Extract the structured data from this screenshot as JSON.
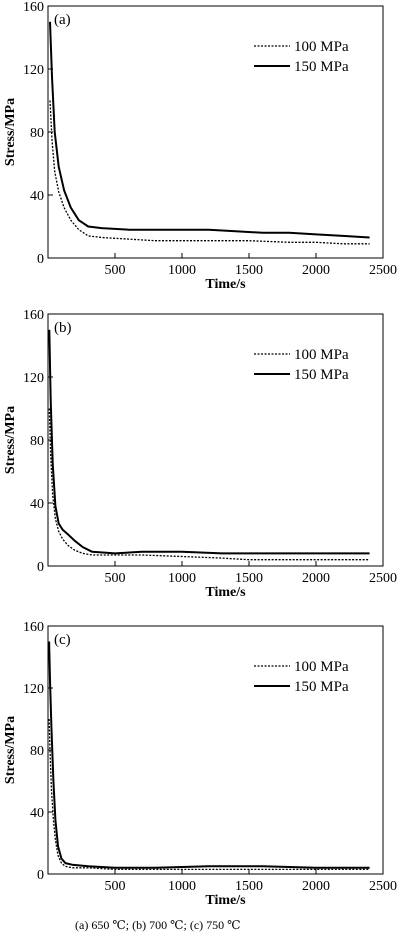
{
  "chart_data": [
    {
      "type": "line",
      "panel_label": "(a)",
      "xlabel": "Time/s",
      "ylabel": "Stress/MPa",
      "xlim": [
        0,
        2500
      ],
      "ylim": [
        0,
        160
      ],
      "xticks": [
        500,
        1000,
        1500,
        2000,
        2500
      ],
      "yticks": [
        0,
        40,
        80,
        120,
        160
      ],
      "legend_position": "top-right",
      "grid": false,
      "series": [
        {
          "name": "100 MPa",
          "style": "dotted",
          "x": [
            15,
            30,
            50,
            80,
            120,
            170,
            230,
            300,
            400,
            600,
            800,
            1000,
            1200,
            1500,
            1800,
            2000,
            2200,
            2400
          ],
          "y": [
            100,
            75,
            55,
            42,
            32,
            24,
            18,
            14,
            13,
            12,
            11,
            11,
            11,
            11,
            10,
            10,
            9,
            9
          ]
        },
        {
          "name": "150 MPa",
          "style": "solid",
          "x": [
            15,
            30,
            50,
            80,
            120,
            170,
            230,
            300,
            400,
            600,
            800,
            1000,
            1200,
            1400,
            1600,
            1800,
            2000,
            2200,
            2400
          ],
          "y": [
            150,
            115,
            80,
            58,
            43,
            32,
            24,
            20,
            19,
            18,
            18,
            18,
            18,
            17,
            16,
            16,
            15,
            14,
            13
          ]
        }
      ]
    },
    {
      "type": "line",
      "panel_label": "(b)",
      "xlabel": "Time/s",
      "ylabel": "Stress/MPa",
      "xlim": [
        0,
        2500
      ],
      "ylim": [
        0,
        160
      ],
      "xticks": [
        500,
        1000,
        1500,
        2000,
        2500
      ],
      "yticks": [
        0,
        40,
        80,
        120,
        160
      ],
      "legend_position": "top-right",
      "grid": false,
      "series": [
        {
          "name": "100 MPa",
          "style": "dotted",
          "x": [
            10,
            20,
            35,
            55,
            80,
            110,
            150,
            200,
            260,
            330,
            500,
            700,
            1000,
            1300,
            1500,
            1800,
            2100,
            2400
          ],
          "y": [
            100,
            70,
            45,
            30,
            22,
            17,
            13,
            10,
            8,
            7,
            7,
            7,
            6,
            5,
            4,
            4,
            4,
            4
          ]
        },
        {
          "name": "150 MPa",
          "style": "solid",
          "x": [
            10,
            20,
            35,
            55,
            80,
            110,
            150,
            200,
            260,
            330,
            500,
            700,
            1000,
            1300,
            1600,
            1900,
            2200,
            2400
          ],
          "y": [
            150,
            105,
            65,
            38,
            27,
            23,
            20,
            16,
            12,
            9,
            8,
            9,
            9,
            8,
            8,
            8,
            8,
            8
          ]
        }
      ]
    },
    {
      "type": "line",
      "panel_label": "(c)",
      "xlabel": "Time/s",
      "ylabel": "Stress/MPa",
      "xlim": [
        0,
        2500
      ],
      "ylim": [
        0,
        160
      ],
      "xticks": [
        500,
        1000,
        1500,
        2000,
        2500
      ],
      "yticks": [
        0,
        40,
        80,
        120,
        160
      ],
      "legend_position": "top-right",
      "grid": false,
      "series": [
        {
          "name": "100 MPa",
          "style": "dotted",
          "x": [
            8,
            15,
            25,
            40,
            55,
            75,
            100,
            130,
            180,
            300,
            500,
            800,
            1200,
            1600,
            2000,
            2400
          ],
          "y": [
            100,
            80,
            55,
            35,
            22,
            12,
            7,
            5,
            4,
            4,
            3,
            3,
            3,
            3,
            3,
            3
          ]
        },
        {
          "name": "150 MPa",
          "style": "solid",
          "x": [
            8,
            15,
            25,
            40,
            55,
            75,
            100,
            130,
            180,
            300,
            500,
            800,
            1200,
            1600,
            2000,
            2400
          ],
          "y": [
            150,
            125,
            95,
            60,
            35,
            18,
            10,
            7,
            6,
            5,
            4,
            4,
            5,
            5,
            4,
            4
          ]
        }
      ]
    }
  ],
  "caption": "(a)  650  ℃;  (b)  700  ℃;  (c) 750 ℃"
}
